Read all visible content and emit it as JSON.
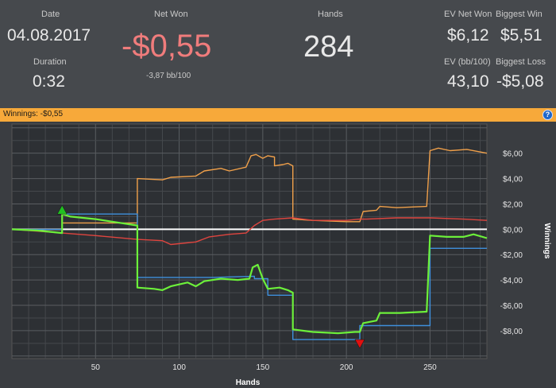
{
  "stats": {
    "date": {
      "label": "Date",
      "value": "04.08.2017"
    },
    "duration": {
      "label": "Duration",
      "value": "0:32"
    },
    "net_won": {
      "label": "Net Won",
      "value": "-$0,55",
      "sub": "-3,87 bb/100"
    },
    "hands": {
      "label": "Hands",
      "value": "284"
    },
    "ev_net_won": {
      "label": "EV Net Won",
      "value": "$6,12"
    },
    "biggest_win": {
      "label": "Biggest Win",
      "value": "$5,51"
    },
    "ev_bb100": {
      "label": "EV (bb/100)",
      "value": "43,10"
    },
    "biggest_loss": {
      "label": "Biggest Loss",
      "value": "-$5,08"
    }
  },
  "banner": {
    "text": "Winnings: -$0,55",
    "help_icon": "question-icon"
  },
  "colors": {
    "negative": "#f07c7c",
    "banner": "#f7a93a",
    "green": "#6cf03a",
    "blue": "#3f8fdc",
    "orange": "#f0a04a",
    "red": "#e0453f",
    "zero_line": "#ffffff"
  },
  "chart_data": {
    "type": "line",
    "xlabel": "Hands",
    "ylabel": "Winnings",
    "xlim": [
      0,
      284
    ],
    "ylim": [
      -10.2,
      8.3
    ],
    "x_ticks": [
      50,
      100,
      150,
      200,
      250
    ],
    "x_tick_labels": [
      "50",
      "100",
      "150",
      "200",
      "250"
    ],
    "y_ticks": [
      6,
      4,
      2,
      0,
      -2,
      -4,
      -6,
      -8
    ],
    "y_tick_labels": [
      "$6,00",
      "$4,00",
      "$2,00",
      "$0,00",
      "-$2,00",
      "-$4,00",
      "-$6,00",
      "-$8,00"
    ],
    "grid": true,
    "zero_line": true,
    "series": [
      {
        "color": "orange",
        "points": [
          [
            0,
            0
          ],
          [
            30,
            0
          ],
          [
            30,
            0.5
          ],
          [
            75,
            0.5
          ],
          [
            75,
            4.0
          ],
          [
            90,
            3.9
          ],
          [
            95,
            4.1
          ],
          [
            110,
            4.2
          ],
          [
            115,
            4.6
          ],
          [
            125,
            4.8
          ],
          [
            130,
            4.6
          ],
          [
            140,
            4.9
          ],
          [
            143,
            5.8
          ],
          [
            146,
            5.9
          ],
          [
            150,
            5.6
          ],
          [
            153,
            5.8
          ],
          [
            157,
            5.7
          ],
          [
            157,
            5.0
          ],
          [
            162,
            5.1
          ],
          [
            165,
            5.2
          ],
          [
            168,
            5.0
          ],
          [
            168,
            0.8
          ],
          [
            180,
            0.7
          ],
          [
            200,
            0.6
          ],
          [
            208,
            0.6
          ],
          [
            210,
            1.4
          ],
          [
            218,
            1.5
          ],
          [
            220,
            1.8
          ],
          [
            230,
            1.7
          ],
          [
            248,
            1.8
          ],
          [
            250,
            6.2
          ],
          [
            255,
            6.4
          ],
          [
            262,
            6.2
          ],
          [
            272,
            6.3
          ],
          [
            284,
            6.0
          ]
        ]
      },
      {
        "color": "red",
        "points": [
          [
            0,
            0
          ],
          [
            30,
            -0.3
          ],
          [
            50,
            -0.5
          ],
          [
            75,
            -0.8
          ],
          [
            90,
            -0.9
          ],
          [
            95,
            -1.2
          ],
          [
            110,
            -1.0
          ],
          [
            118,
            -0.6
          ],
          [
            130,
            -0.4
          ],
          [
            140,
            -0.3
          ],
          [
            145,
            0.3
          ],
          [
            150,
            0.7
          ],
          [
            157,
            0.8
          ],
          [
            168,
            0.9
          ],
          [
            180,
            0.7
          ],
          [
            200,
            0.7
          ],
          [
            208,
            0.8
          ],
          [
            212,
            0.8
          ],
          [
            230,
            0.9
          ],
          [
            250,
            0.9
          ],
          [
            270,
            0.8
          ],
          [
            284,
            0.7
          ]
        ]
      },
      {
        "color": "blue",
        "points": [
          [
            0,
            0
          ],
          [
            30,
            0
          ],
          [
            30,
            1.2
          ],
          [
            75,
            1.2
          ],
          [
            75,
            -3.8
          ],
          [
            120,
            -3.8
          ],
          [
            145,
            -3.7
          ],
          [
            145,
            -3.9
          ],
          [
            153,
            -3.9
          ],
          [
            153,
            -5.2
          ],
          [
            168,
            -5.2
          ],
          [
            168,
            -8.7
          ],
          [
            208,
            -8.7
          ],
          [
            208,
            -7.6
          ],
          [
            250,
            -7.6
          ],
          [
            250,
            -1.5
          ],
          [
            284,
            -1.5
          ]
        ]
      },
      {
        "color": "green",
        "points": [
          [
            0,
            0
          ],
          [
            15,
            -0.1
          ],
          [
            30,
            -0.3
          ],
          [
            30,
            1.2
          ],
          [
            35,
            1.0
          ],
          [
            50,
            0.8
          ],
          [
            60,
            0.6
          ],
          [
            75,
            0.3
          ],
          [
            75,
            -4.6
          ],
          [
            85,
            -4.7
          ],
          [
            90,
            -4.8
          ],
          [
            95,
            -4.5
          ],
          [
            105,
            -4.2
          ],
          [
            110,
            -4.5
          ],
          [
            115,
            -4.1
          ],
          [
            125,
            -3.9
          ],
          [
            135,
            -4.0
          ],
          [
            142,
            -3.9
          ],
          [
            144,
            -3.0
          ],
          [
            147,
            -2.8
          ],
          [
            150,
            -3.9
          ],
          [
            153,
            -4.7
          ],
          [
            160,
            -4.6
          ],
          [
            165,
            -4.8
          ],
          [
            168,
            -5.0
          ],
          [
            168,
            -7.9
          ],
          [
            180,
            -8.1
          ],
          [
            195,
            -8.2
          ],
          [
            205,
            -8.1
          ],
          [
            208,
            -8.1
          ],
          [
            210,
            -7.4
          ],
          [
            218,
            -7.2
          ],
          [
            220,
            -6.6
          ],
          [
            232,
            -6.6
          ],
          [
            248,
            -6.5
          ],
          [
            250,
            -0.5
          ],
          [
            260,
            -0.6
          ],
          [
            270,
            -0.6
          ],
          [
            276,
            -0.4
          ],
          [
            284,
            -0.7
          ]
        ]
      }
    ],
    "markers": [
      {
        "type": "max",
        "x": 30,
        "y": 1.2,
        "color": "#22c022"
      },
      {
        "type": "min",
        "x": 208,
        "y": -8.7,
        "color": "#e01010"
      }
    ]
  }
}
